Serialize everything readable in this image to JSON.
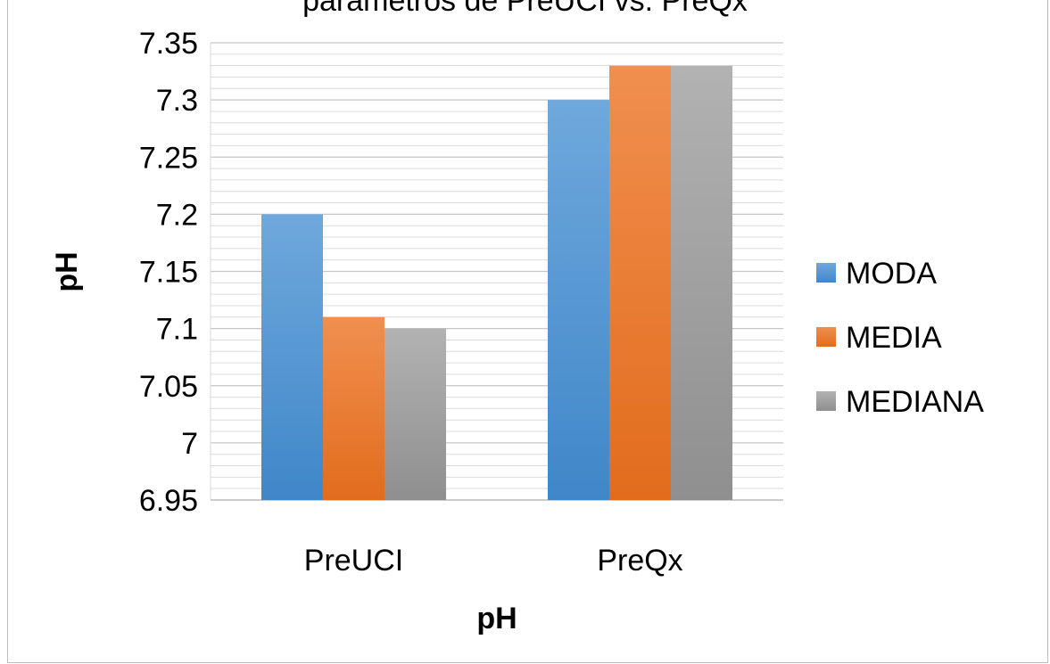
{
  "chart_title": "parámetros de PreUCI vs. PreQx",
  "chart_data": {
    "type": "bar",
    "title": "parámetros de PreUCI vs. PreQx",
    "categories": [
      "PreUCI",
      "PreQx"
    ],
    "series": [
      {
        "name": "MODA",
        "values": [
          7.2,
          7.3
        ],
        "color": "#5b9bd5"
      },
      {
        "name": "MEDIA",
        "values": [
          7.11,
          7.33
        ],
        "color": "#ed7d31"
      },
      {
        "name": "MEDIANA",
        "values": [
          7.1,
          7.33
        ],
        "color": "#a5a5a5"
      }
    ],
    "xlabel": "pH",
    "ylabel": "pH",
    "ylim": [
      6.95,
      7.35
    ],
    "yticks": [
      "6.95",
      "7",
      "7.05",
      "7.1",
      "7.15",
      "7.2",
      "7.25",
      "7.3",
      "7.35"
    ],
    "major_step": 0.05,
    "minor_step": 0.01,
    "grid": true,
    "legend_position": "right"
  }
}
